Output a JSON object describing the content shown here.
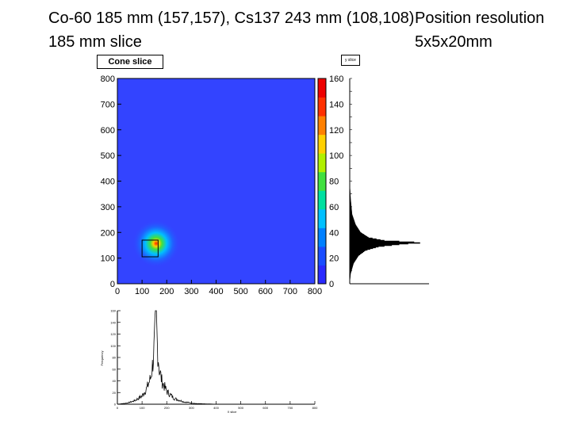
{
  "titles": {
    "line1_left": "Co-60 185 mm (157,157), Cs137 243 mm (108,108)",
    "line1_right": "Position resolution",
    "line2_left": "185 mm slice",
    "line2_right": "5x5x20mm"
  },
  "chart_data": [
    {
      "type": "heatmap",
      "title": "Cone slice",
      "xlim": [
        0,
        800
      ],
      "ylim": [
        0,
        800
      ],
      "xticks": [
        "0",
        "100",
        "200",
        "300",
        "400",
        "500",
        "600",
        "700",
        "800"
      ],
      "yticks": [
        "0",
        "100",
        "200",
        "300",
        "400",
        "500",
        "600",
        "700",
        "800"
      ],
      "background_color": "#3344ff",
      "hotspot": {
        "x": 157,
        "y": 157,
        "peak": 160
      },
      "marker_box": {
        "x0": 100,
        "x1": 165,
        "y0": 105,
        "y1": 170
      },
      "colorbar": {
        "ticks": [
          "0",
          "20",
          "40",
          "60",
          "80",
          "100",
          "120",
          "140",
          "160"
        ],
        "colors": [
          "#2a2aff",
          "#1a4dff",
          "#0080ff",
          "#00c0ff",
          "#00e0a0",
          "#40e040",
          "#b0f000",
          "#ffd000",
          "#ff8000",
          "#ff3000",
          "#ee0000"
        ]
      }
    },
    {
      "type": "bar",
      "title": "y slice",
      "orientation": "horizontal",
      "y_range": [
        0,
        800
      ],
      "x_range": [
        0,
        160
      ],
      "profile": [
        {
          "y": 0,
          "v": 0
        },
        {
          "y": 40,
          "v": 2
        },
        {
          "y": 80,
          "v": 8
        },
        {
          "y": 110,
          "v": 18
        },
        {
          "y": 130,
          "v": 32
        },
        {
          "y": 145,
          "v": 60
        },
        {
          "y": 155,
          "v": 110
        },
        {
          "y": 160,
          "v": 150
        },
        {
          "y": 168,
          "v": 70
        },
        {
          "y": 180,
          "v": 38
        },
        {
          "y": 200,
          "v": 22
        },
        {
          "y": 230,
          "v": 12
        },
        {
          "y": 270,
          "v": 5
        },
        {
          "y": 330,
          "v": 2
        },
        {
          "y": 400,
          "v": 0
        },
        {
          "y": 800,
          "v": 0
        }
      ]
    },
    {
      "type": "line",
      "title": "x slice",
      "xlabel": "X slice",
      "ylabel": "Frequency",
      "xlim": [
        0,
        800
      ],
      "ylim": [
        0,
        160
      ],
      "xticks": [
        "0",
        "100",
        "200",
        "300",
        "400",
        "500",
        "600",
        "700",
        "800"
      ],
      "yticks": [
        "0",
        "20",
        "40",
        "60",
        "80",
        "100",
        "120",
        "140",
        "160"
      ],
      "profile": [
        {
          "x": 0,
          "v": 0
        },
        {
          "x": 40,
          "v": 2
        },
        {
          "x": 70,
          "v": 6
        },
        {
          "x": 100,
          "v": 14
        },
        {
          "x": 120,
          "v": 28
        },
        {
          "x": 135,
          "v": 45
        },
        {
          "x": 145,
          "v": 75
        },
        {
          "x": 152,
          "v": 115
        },
        {
          "x": 157,
          "v": 155
        },
        {
          "x": 162,
          "v": 100
        },
        {
          "x": 170,
          "v": 60
        },
        {
          "x": 180,
          "v": 40
        },
        {
          "x": 200,
          "v": 22
        },
        {
          "x": 230,
          "v": 10
        },
        {
          "x": 270,
          "v": 4
        },
        {
          "x": 320,
          "v": 1
        },
        {
          "x": 400,
          "v": 0
        },
        {
          "x": 800,
          "v": 0
        }
      ]
    }
  ]
}
